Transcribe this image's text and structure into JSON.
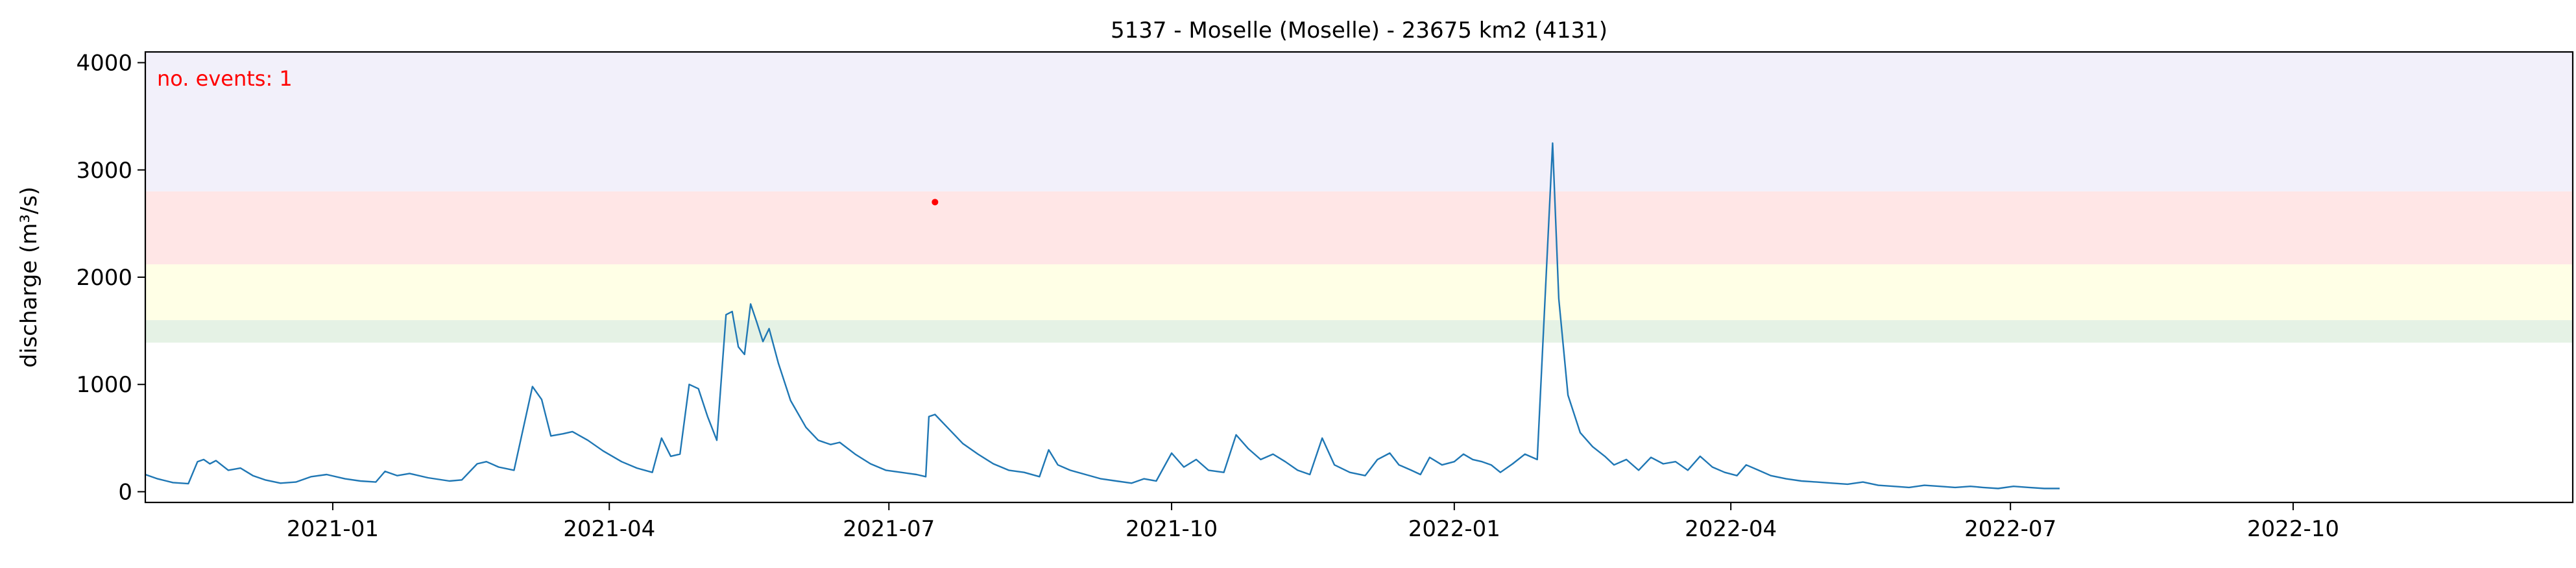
{
  "chart_data": {
    "type": "line",
    "title": "5137 - Moselle (Moselle) - 23675 km2 (4131)",
    "xlabel": "",
    "ylabel": "discharge (m³/s)",
    "xlim": [
      "2020-11-01",
      "2022-12-31"
    ],
    "ylim": [
      -100,
      4100
    ],
    "x_ticks": [
      "2021-01",
      "2021-04",
      "2021-07",
      "2021-10",
      "2022-01",
      "2022-04",
      "2022-07",
      "2022-10"
    ],
    "y_ticks": [
      0,
      1000,
      2000,
      3000,
      4000
    ],
    "grid": false,
    "annotation": "no. events: 1",
    "annotation_color": "#ff0000",
    "threshold_bands": [
      {
        "from": 1390,
        "to": 1600,
        "color": "#e5f2e5"
      },
      {
        "from": 1600,
        "to": 2120,
        "color": "#ffffe6"
      },
      {
        "from": 2120,
        "to": 2800,
        "color": "#ffe6e6"
      },
      {
        "from": 2800,
        "to": 4100,
        "color": "#f2f0fa"
      }
    ],
    "events": [
      {
        "date": "2021-07-16",
        "value": 2700,
        "color": "#ff0000"
      }
    ],
    "series": [
      {
        "color": "#1f77b4",
        "points": [
          [
            "2020-11-01",
            160
          ],
          [
            "2020-11-05",
            120
          ],
          [
            "2020-11-10",
            85
          ],
          [
            "2020-11-15",
            75
          ],
          [
            "2020-11-18",
            280
          ],
          [
            "2020-11-20",
            300
          ],
          [
            "2020-11-22",
            260
          ],
          [
            "2020-11-24",
            290
          ],
          [
            "2020-11-28",
            200
          ],
          [
            "2020-12-02",
            220
          ],
          [
            "2020-12-06",
            150
          ],
          [
            "2020-12-10",
            110
          ],
          [
            "2020-12-15",
            80
          ],
          [
            "2020-12-20",
            90
          ],
          [
            "2020-12-25",
            140
          ],
          [
            "2020-12-30",
            160
          ],
          [
            "2021-01-05",
            120
          ],
          [
            "2021-01-10",
            100
          ],
          [
            "2021-01-15",
            90
          ],
          [
            "2021-01-18",
            190
          ],
          [
            "2021-01-22",
            150
          ],
          [
            "2021-01-26",
            170
          ],
          [
            "2021-02-01",
            130
          ],
          [
            "2021-02-08",
            100
          ],
          [
            "2021-02-12",
            110
          ],
          [
            "2021-02-17",
            260
          ],
          [
            "2021-02-20",
            280
          ],
          [
            "2021-02-24",
            230
          ],
          [
            "2021-03-01",
            200
          ],
          [
            "2021-03-07",
            980
          ],
          [
            "2021-03-10",
            860
          ],
          [
            "2021-03-13",
            520
          ],
          [
            "2021-03-17",
            540
          ],
          [
            "2021-03-20",
            560
          ],
          [
            "2021-03-25",
            480
          ],
          [
            "2021-03-30",
            380
          ],
          [
            "2021-04-05",
            280
          ],
          [
            "2021-04-10",
            220
          ],
          [
            "2021-04-15",
            180
          ],
          [
            "2021-04-18",
            500
          ],
          [
            "2021-04-21",
            330
          ],
          [
            "2021-04-24",
            350
          ],
          [
            "2021-04-27",
            1000
          ],
          [
            "2021-04-30",
            960
          ],
          [
            "2021-05-03",
            700
          ],
          [
            "2021-05-06",
            480
          ],
          [
            "2021-05-09",
            1650
          ],
          [
            "2021-05-11",
            1680
          ],
          [
            "2021-05-13",
            1350
          ],
          [
            "2021-05-15",
            1280
          ],
          [
            "2021-05-17",
            1750
          ],
          [
            "2021-05-19",
            1580
          ],
          [
            "2021-05-21",
            1400
          ],
          [
            "2021-05-23",
            1520
          ],
          [
            "2021-05-26",
            1200
          ],
          [
            "2021-05-30",
            850
          ],
          [
            "2021-06-04",
            600
          ],
          [
            "2021-06-08",
            480
          ],
          [
            "2021-06-12",
            440
          ],
          [
            "2021-06-15",
            460
          ],
          [
            "2021-06-20",
            350
          ],
          [
            "2021-06-25",
            260
          ],
          [
            "2021-06-30",
            200
          ],
          [
            "2021-07-05",
            180
          ],
          [
            "2021-07-10",
            160
          ],
          [
            "2021-07-13",
            140
          ],
          [
            "2021-07-14",
            700
          ],
          [
            "2021-07-16",
            720
          ],
          [
            "2021-07-20",
            600
          ],
          [
            "2021-07-25",
            450
          ],
          [
            "2021-07-30",
            350
          ],
          [
            "2021-08-04",
            260
          ],
          [
            "2021-08-09",
            200
          ],
          [
            "2021-08-14",
            180
          ],
          [
            "2021-08-19",
            140
          ],
          [
            "2021-08-22",
            390
          ],
          [
            "2021-08-25",
            250
          ],
          [
            "2021-08-29",
            200
          ],
          [
            "2021-09-03",
            160
          ],
          [
            "2021-09-08",
            120
          ],
          [
            "2021-09-13",
            100
          ],
          [
            "2021-09-18",
            80
          ],
          [
            "2021-09-22",
            120
          ],
          [
            "2021-09-26",
            100
          ],
          [
            "2021-10-01",
            360
          ],
          [
            "2021-10-05",
            230
          ],
          [
            "2021-10-09",
            300
          ],
          [
            "2021-10-13",
            200
          ],
          [
            "2021-10-18",
            180
          ],
          [
            "2021-10-22",
            530
          ],
          [
            "2021-10-26",
            400
          ],
          [
            "2021-10-30",
            300
          ],
          [
            "2021-11-03",
            350
          ],
          [
            "2021-11-07",
            280
          ],
          [
            "2021-11-11",
            200
          ],
          [
            "2021-11-15",
            160
          ],
          [
            "2021-11-19",
            500
          ],
          [
            "2021-11-23",
            250
          ],
          [
            "2021-11-28",
            180
          ],
          [
            "2021-12-03",
            150
          ],
          [
            "2021-12-07",
            300
          ],
          [
            "2021-12-11",
            360
          ],
          [
            "2021-12-14",
            250
          ],
          [
            "2021-12-18",
            200
          ],
          [
            "2021-12-21",
            160
          ],
          [
            "2021-12-24",
            320
          ],
          [
            "2021-12-28",
            250
          ],
          [
            "2022-01-01",
            280
          ],
          [
            "2022-01-04",
            350
          ],
          [
            "2022-01-07",
            300
          ],
          [
            "2022-01-10",
            280
          ],
          [
            "2022-01-13",
            250
          ],
          [
            "2022-01-16",
            180
          ],
          [
            "2022-01-20",
            260
          ],
          [
            "2022-01-24",
            350
          ],
          [
            "2022-01-28",
            300
          ],
          [
            "2022-02-02",
            3250
          ],
          [
            "2022-02-04",
            1800
          ],
          [
            "2022-02-07",
            900
          ],
          [
            "2022-02-11",
            550
          ],
          [
            "2022-02-15",
            420
          ],
          [
            "2022-02-19",
            330
          ],
          [
            "2022-02-22",
            250
          ],
          [
            "2022-02-26",
            300
          ],
          [
            "2022-03-02",
            200
          ],
          [
            "2022-03-06",
            320
          ],
          [
            "2022-03-10",
            260
          ],
          [
            "2022-03-14",
            280
          ],
          [
            "2022-03-18",
            200
          ],
          [
            "2022-03-22",
            330
          ],
          [
            "2022-03-26",
            230
          ],
          [
            "2022-03-30",
            180
          ],
          [
            "2022-04-03",
            150
          ],
          [
            "2022-04-06",
            250
          ],
          [
            "2022-04-10",
            200
          ],
          [
            "2022-04-14",
            150
          ],
          [
            "2022-04-19",
            120
          ],
          [
            "2022-04-24",
            100
          ],
          [
            "2022-04-29",
            90
          ],
          [
            "2022-05-04",
            80
          ],
          [
            "2022-05-09",
            70
          ],
          [
            "2022-05-14",
            90
          ],
          [
            "2022-05-19",
            60
          ],
          [
            "2022-05-24",
            50
          ],
          [
            "2022-05-29",
            40
          ],
          [
            "2022-06-03",
            60
          ],
          [
            "2022-06-08",
            50
          ],
          [
            "2022-06-13",
            40
          ],
          [
            "2022-06-18",
            50
          ],
          [
            "2022-06-22",
            40
          ],
          [
            "2022-06-27",
            30
          ],
          [
            "2022-07-02",
            50
          ],
          [
            "2022-07-07",
            40
          ],
          [
            "2022-07-12",
            30
          ],
          [
            "2022-07-17",
            30
          ]
        ]
      }
    ]
  }
}
